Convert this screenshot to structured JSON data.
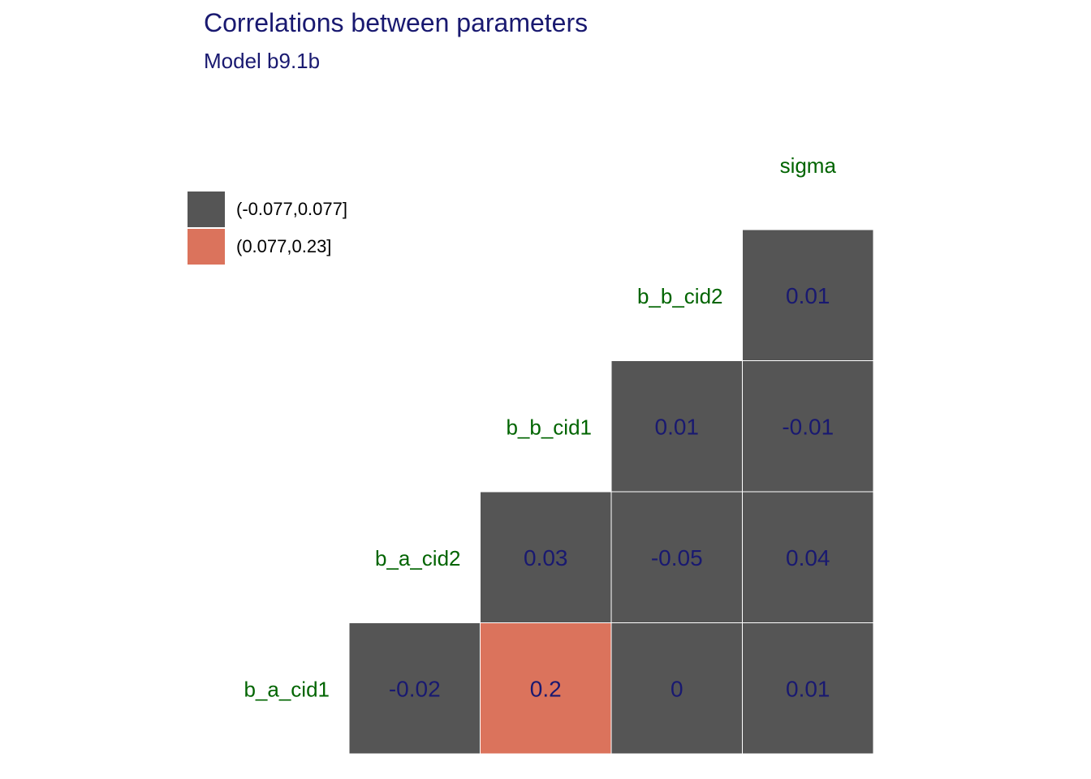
{
  "chart_data": {
    "type": "heatmap",
    "title": "Correlations between parameters",
    "subtitle": "Model b9.1b",
    "rows": [
      "b_a_cid1",
      "b_a_cid2",
      "b_b_cid1",
      "b_b_cid2"
    ],
    "columns": [
      "b_a_cid2",
      "b_b_cid1",
      "b_b_cid2",
      "sigma"
    ],
    "cells": [
      {
        "row": "b_a_cid1",
        "col": "b_a_cid2",
        "value": "-0.02",
        "bin": 0
      },
      {
        "row": "b_a_cid1",
        "col": "b_b_cid1",
        "value": "0.2",
        "bin": 1
      },
      {
        "row": "b_a_cid1",
        "col": "b_b_cid2",
        "value": "0",
        "bin": 0
      },
      {
        "row": "b_a_cid1",
        "col": "sigma",
        "value": "0.01",
        "bin": 0
      },
      {
        "row": "b_a_cid2",
        "col": "b_b_cid1",
        "value": "0.03",
        "bin": 0
      },
      {
        "row": "b_a_cid2",
        "col": "b_b_cid2",
        "value": "-0.05",
        "bin": 0
      },
      {
        "row": "b_a_cid2",
        "col": "sigma",
        "value": "0.04",
        "bin": 0
      },
      {
        "row": "b_b_cid1",
        "col": "b_b_cid2",
        "value": "0.01",
        "bin": 0
      },
      {
        "row": "b_b_cid1",
        "col": "sigma",
        "value": "-0.01",
        "bin": 0
      },
      {
        "row": "b_b_cid2",
        "col": "sigma",
        "value": "0.01",
        "bin": 0
      }
    ],
    "legend": {
      "placement": "top-left",
      "entries": [
        {
          "label": "(-0.077,0.077]",
          "color": "#555555"
        },
        {
          "label": "(0.077,0.23]",
          "color": "#DB735C"
        }
      ]
    },
    "colors": {
      "title": "#191970",
      "cell_text": "#191970",
      "axis_label": "#006400",
      "cell_border": "#ffffff"
    }
  }
}
